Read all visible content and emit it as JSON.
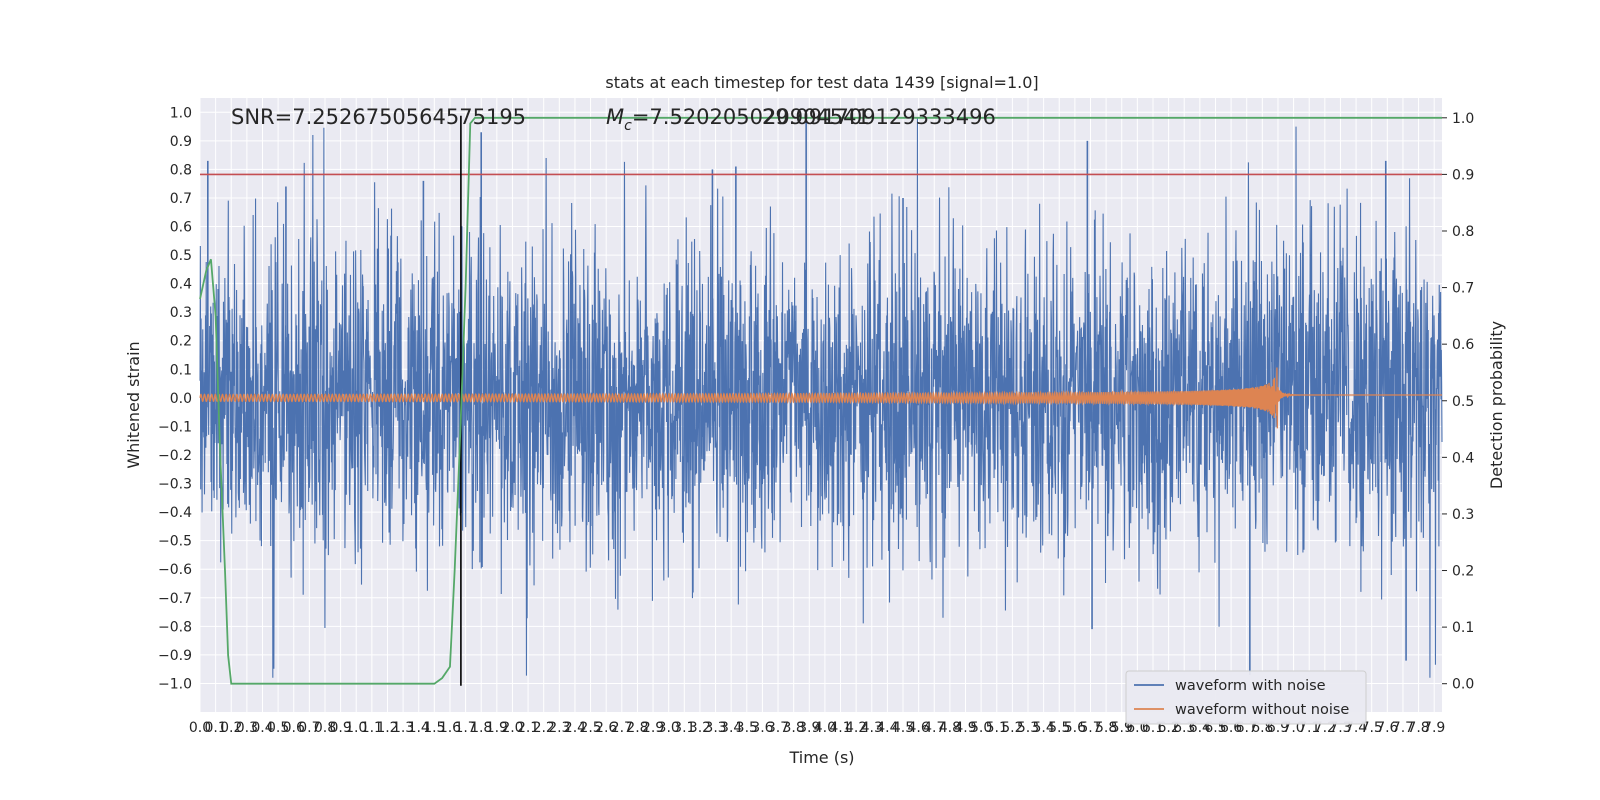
{
  "chart_data": {
    "type": "line",
    "title": "stats at each timestep for test data 1439 [signal=1.0]",
    "xlabel": "Time (s)",
    "ylabel": "Whitened strain",
    "ylabel_right": "Detection probability",
    "xlim": [
      0,
      7.95
    ],
    "ylim": [
      -1.1,
      1.05
    ],
    "ylim_right": [
      -0.05,
      1.035
    ],
    "x_ticks": [
      0.0,
      0.1,
      0.2,
      0.3,
      0.4,
      0.5,
      0.6,
      0.7,
      0.8,
      0.9,
      1.0,
      1.1,
      1.2,
      1.3,
      1.4,
      1.5,
      1.6,
      1.7,
      1.8,
      1.9,
      2.0,
      2.1,
      2.2,
      2.3,
      2.4,
      2.5,
      2.6,
      2.7,
      2.8,
      2.9,
      3.0,
      3.1,
      3.2,
      3.3,
      3.4,
      3.5,
      3.6,
      3.7,
      3.8,
      3.9,
      4.0,
      4.1,
      4.2,
      4.3,
      4.4,
      4.5,
      4.6,
      4.7,
      4.8,
      4.9,
      5.0,
      5.1,
      5.2,
      5.3,
      5.4,
      5.5,
      5.6,
      5.7,
      5.8,
      5.9,
      6.0,
      6.1,
      6.2,
      6.3,
      6.4,
      6.5,
      6.6,
      6.7,
      6.8,
      6.9,
      7.0,
      7.1,
      7.2,
      7.3,
      7.4,
      7.5,
      7.6,
      7.7,
      7.8,
      7.9
    ],
    "y_ticks": [
      -1.0,
      -0.9,
      -0.8,
      -0.7,
      -0.6,
      -0.5,
      -0.4,
      -0.3,
      -0.2,
      -0.1,
      0.0,
      0.1,
      0.2,
      0.3,
      0.4,
      0.5,
      0.6,
      0.7,
      0.8,
      0.9,
      1.0
    ],
    "y_ticks_right": [
      0.0,
      0.1,
      0.2,
      0.3,
      0.4,
      0.5,
      0.6,
      0.7,
      0.8,
      0.9,
      1.0
    ],
    "annotations": {
      "snr": "SNR=7.2526750564575195",
      "mc_prefix": "M",
      "mc_subscript": "c",
      "mc_value": "=7.520205020904541",
      "mc_overlap": "29.091709129333496"
    },
    "threshold_right": 0.9,
    "marker_x": 1.67,
    "series": [
      {
        "name": "waveform with noise",
        "color": "#4c72b0",
        "kind": "noise",
        "envelope_typical": 0.45,
        "spike_times": [
          0.05,
          0.55,
          1.43,
          1.8,
          3.28,
          3.43,
          3.88,
          4.5,
          5.68,
          5.71,
          6.72,
          7.59,
          7.72
        ],
        "spike_values": [
          0.83,
          0.74,
          0.76,
          0.93,
          0.8,
          0.81,
          0.98,
          0.7,
          0.9,
          -0.81,
          -0.97,
          0.83,
          -0.92
        ]
      },
      {
        "name": "waveform without noise",
        "color": "#dd8452",
        "kind": "chirp",
        "merger_time": 6.9,
        "peak_amplitude": 0.22,
        "start_amplitude": 0.012
      },
      {
        "name": "detection probability",
        "color": "#55a868",
        "axis": "right",
        "x": [
          0.0,
          0.04,
          0.07,
          0.1,
          0.13,
          0.16,
          0.18,
          0.2,
          0.3,
          0.6,
          1.0,
          1.4,
          1.5,
          1.55,
          1.6,
          1.63,
          1.66,
          1.7,
          1.73,
          1.76,
          3.0,
          5.0,
          7.95
        ],
        "values": [
          0.68,
          0.73,
          0.75,
          0.65,
          0.4,
          0.2,
          0.05,
          0.0,
          0.0,
          0.0,
          0.0,
          0.0,
          0.0,
          0.01,
          0.03,
          0.2,
          0.4,
          0.7,
          0.99,
          1.0,
          1.0,
          1.0,
          1.0
        ]
      }
    ],
    "legend": {
      "placement": "lower-right",
      "entries": [
        {
          "label": "waveform with noise",
          "color": "#4c72b0"
        },
        {
          "label": "waveform without noise",
          "color": "#dd8452"
        }
      ]
    },
    "colors": {
      "background": "#eaeaf2",
      "grid": "#ffffff",
      "threshold": "#c44e52",
      "marker": "#000000"
    }
  }
}
